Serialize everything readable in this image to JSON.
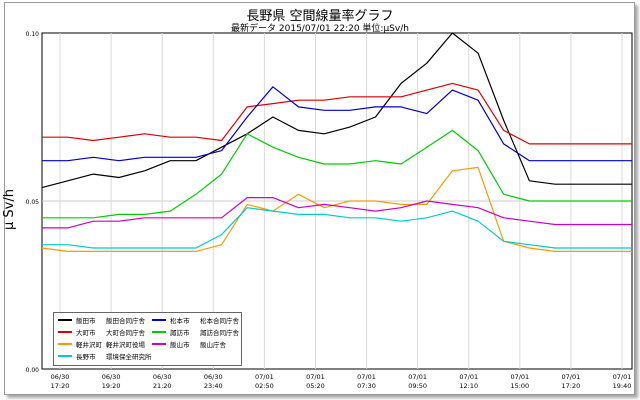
{
  "title": "長野県 空間線量率グラフ",
  "subtitle": "最新データ 2015/07/01 22:20 単位:μSv/h",
  "chart_data": {
    "type": "line",
    "ylabel": "μ Sv/h",
    "ylim": [
      0.0,
      0.1
    ],
    "yticks": [
      "0.00",
      "0.05",
      "0.10"
    ],
    "grid": true,
    "legend_position": "bottom-left",
    "xticks": [
      {
        "date": "06/30",
        "time": "17:20"
      },
      {
        "date": "06/30",
        "time": "19:20"
      },
      {
        "date": "06/30",
        "time": "21:20"
      },
      {
        "date": "06/30",
        "time": "23:40"
      },
      {
        "date": "07/01",
        "time": "02:50"
      },
      {
        "date": "07/01",
        "time": "05:20"
      },
      {
        "date": "07/01",
        "time": "07:30"
      },
      {
        "date": "07/01",
        "time": "09:50"
      },
      {
        "date": "07/01",
        "time": "12:10"
      },
      {
        "date": "07/01",
        "time": "15:00"
      },
      {
        "date": "07/01",
        "time": "17:20"
      },
      {
        "date": "07/01",
        "time": "19:40"
      }
    ],
    "x": [
      0,
      0.5,
      1,
      1.5,
      2,
      2.5,
      3,
      3.5,
      4,
      4.5,
      5,
      5.5,
      6,
      6.5,
      7,
      7.5,
      8,
      8.5,
      9,
      9.5,
      10,
      10.5,
      11,
      11.5
    ],
    "series": [
      {
        "name": "飯田市",
        "site": "飯田合同庁舎",
        "color": "#000000",
        "values": [
          0.054,
          0.056,
          0.058,
          0.057,
          0.059,
          0.062,
          0.062,
          0.066,
          0.07,
          0.075,
          0.071,
          0.07,
          0.072,
          0.075,
          0.085,
          0.091,
          0.1,
          0.094,
          0.074,
          0.056,
          0.055,
          0.055,
          0.055,
          0.055
        ]
      },
      {
        "name": "大町市",
        "site": "大町合同庁舎",
        "color": "#dd0000",
        "values": [
          0.069,
          0.069,
          0.068,
          0.069,
          0.07,
          0.069,
          0.069,
          0.068,
          0.078,
          0.079,
          0.08,
          0.08,
          0.081,
          0.081,
          0.081,
          0.083,
          0.085,
          0.083,
          0.071,
          0.067,
          0.067,
          0.067,
          0.067,
          0.067
        ]
      },
      {
        "name": "軽井沢町",
        "site": "軽井沢町役場",
        "color": "#ff9900",
        "values": [
          0.036,
          0.035,
          0.035,
          0.035,
          0.035,
          0.035,
          0.035,
          0.037,
          0.049,
          0.047,
          0.052,
          0.048,
          0.05,
          0.05,
          0.049,
          0.049,
          0.059,
          0.06,
          0.038,
          0.036,
          0.035,
          0.035,
          0.035,
          0.035
        ]
      },
      {
        "name": "長野市",
        "site": "環境保全研究所",
        "color": "#00cccc",
        "values": [
          0.037,
          0.037,
          0.036,
          0.036,
          0.036,
          0.036,
          0.036,
          0.04,
          0.048,
          0.047,
          0.046,
          0.046,
          0.045,
          0.045,
          0.044,
          0.045,
          0.047,
          0.044,
          0.038,
          0.037,
          0.036,
          0.036,
          0.036,
          0.036
        ]
      },
      {
        "name": "松本市",
        "site": "松本合同庁舎",
        "color": "#0000cc",
        "values": [
          0.062,
          0.062,
          0.063,
          0.062,
          0.063,
          0.063,
          0.063,
          0.065,
          0.075,
          0.084,
          0.078,
          0.077,
          0.077,
          0.078,
          0.078,
          0.076,
          0.083,
          0.08,
          0.067,
          0.062,
          0.062,
          0.062,
          0.062,
          0.062
        ]
      },
      {
        "name": "諏訪市",
        "site": "諏訪合同庁舎",
        "color": "#00cc00",
        "values": [
          0.045,
          0.045,
          0.045,
          0.046,
          0.046,
          0.047,
          0.052,
          0.058,
          0.07,
          0.066,
          0.063,
          0.061,
          0.061,
          0.062,
          0.061,
          0.066,
          0.071,
          0.065,
          0.052,
          0.05,
          0.05,
          0.05,
          0.05,
          0.05
        ]
      },
      {
        "name": "飯山市",
        "site": "飯山庁舎",
        "color": "#cc00cc",
        "values": [
          0.042,
          0.042,
          0.044,
          0.044,
          0.045,
          0.045,
          0.045,
          0.045,
          0.051,
          0.051,
          0.048,
          0.049,
          0.048,
          0.047,
          0.048,
          0.05,
          0.049,
          0.048,
          0.045,
          0.044,
          0.043,
          0.043,
          0.043,
          0.043
        ]
      }
    ]
  }
}
